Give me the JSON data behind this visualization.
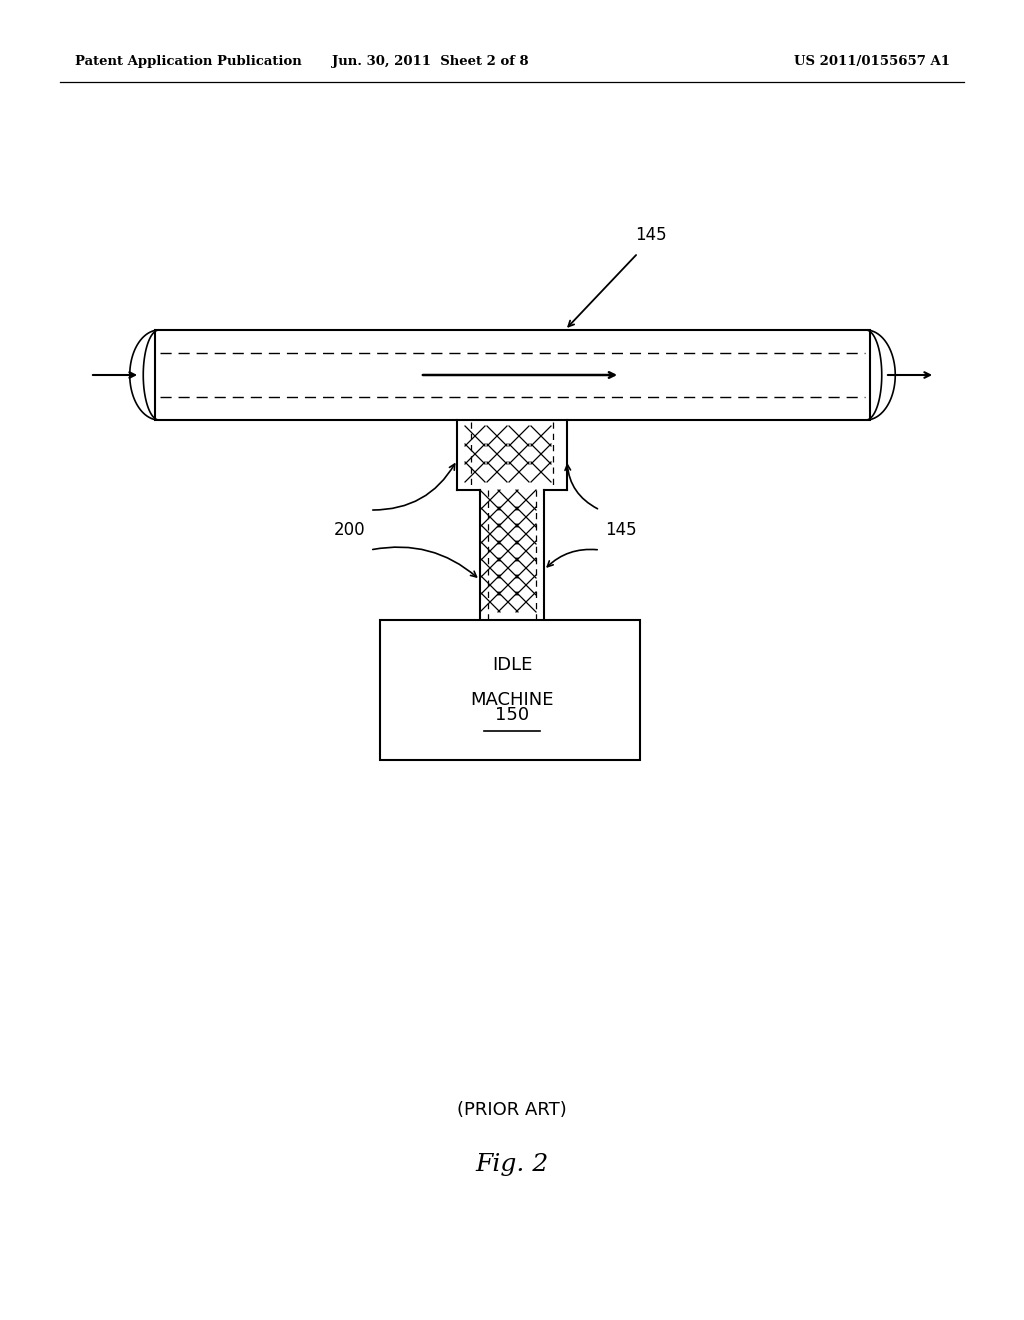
{
  "bg_color": "#ffffff",
  "header_left": "Patent Application Publication",
  "header_center": "Jun. 30, 2011  Sheet 2 of 8",
  "header_right": "US 2011/0155657 A1",
  "fig_label": "Fig. 2",
  "prior_art": "(PRIOR ART)",
  "label_145_top": "145",
  "label_145_right": "145",
  "label_200": "200",
  "label_150": "150",
  "idle_machine_line1": "IDLE",
  "idle_machine_line2": "MACHINE"
}
